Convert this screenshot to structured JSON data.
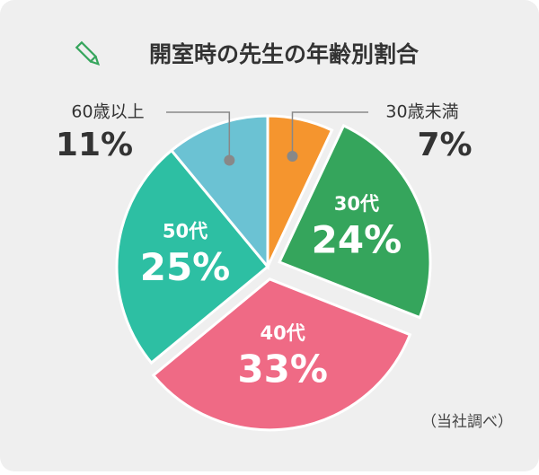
{
  "chart_data": {
    "type": "pie",
    "title": "開室時の先生の年齢別割合",
    "categories": [
      "30歳未満",
      "30代",
      "40代",
      "50代",
      "60歳以上"
    ],
    "values": [
      7,
      24,
      33,
      25,
      11
    ],
    "value_labels": [
      "7%",
      "24%",
      "33%",
      "25%",
      "11%"
    ],
    "colors": [
      "#f5952e",
      "#35a55c",
      "#ef6a85",
      "#2dbfa3",
      "#6bc2d3"
    ],
    "exploded": [
      false,
      true,
      true,
      false,
      false
    ],
    "note": "（当社調べ）"
  }
}
